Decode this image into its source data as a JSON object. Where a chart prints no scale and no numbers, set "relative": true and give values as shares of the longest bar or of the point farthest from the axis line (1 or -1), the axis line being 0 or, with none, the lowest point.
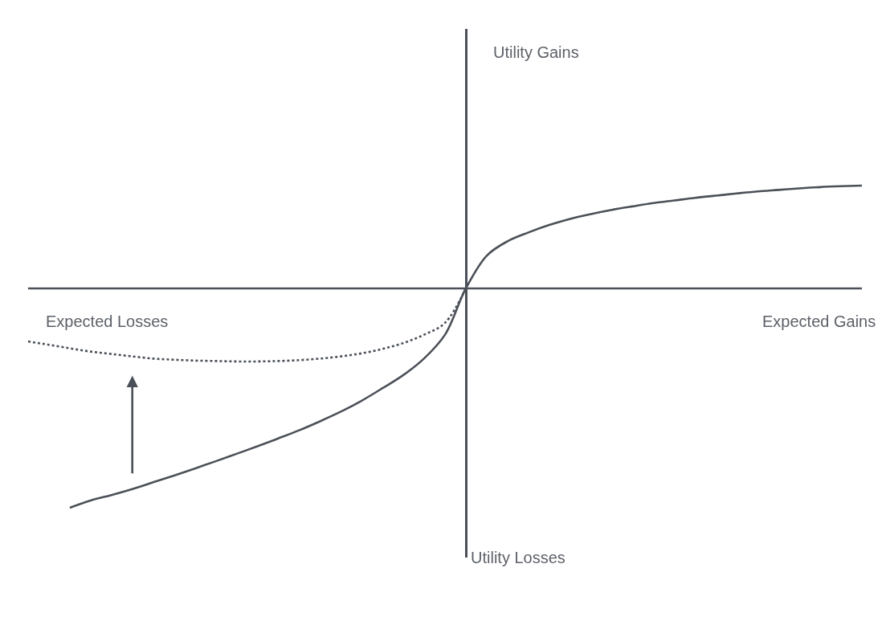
{
  "chart_data": {
    "type": "line",
    "relative": true,
    "categories": [
      null,
      null,
      null,
      null,
      null,
      null,
      null,
      null,
      null,
      null,
      null,
      null,
      null,
      null,
      null,
      null,
      null,
      null,
      null,
      null,
      null,
      null,
      null,
      null,
      null,
      null,
      null,
      null,
      null,
      null,
      null,
      null,
      null,
      null,
      null,
      null,
      null,
      null,
      null,
      null,
      null
    ],
    "series": [
      {
        "color": "#4b5058",
        "line_style": "solid",
        "values": [
          null,
          null,
          -1.0,
          -0.967,
          -0.942,
          -0.915,
          -0.884,
          -0.853,
          -0.821,
          -0.788,
          -0.754,
          -0.72,
          -0.684,
          -0.647,
          -0.606,
          -0.562,
          -0.512,
          -0.455,
          -0.395,
          -0.319,
          -0.211,
          0,
          0.149,
          0.215,
          0.255,
          0.289,
          0.317,
          0.339,
          0.358,
          0.374,
          0.389,
          0.401,
          0.413,
          0.423,
          0.433,
          0.442,
          0.449,
          0.456,
          0.462,
          0.466,
          0.469
        ]
      },
      {
        "color": "#4b5058",
        "line_style": "dotted",
        "values": [
          -0.242,
          -0.257,
          -0.273,
          -0.288,
          -0.299,
          -0.31,
          -0.32,
          -0.325,
          -0.329,
          -0.331,
          -0.333,
          -0.333,
          -0.331,
          -0.327,
          -0.32,
          -0.31,
          -0.296,
          -0.276,
          -0.249,
          -0.211,
          -0.157,
          0,
          null,
          null,
          null,
          null,
          null,
          null,
          null,
          null,
          null,
          null,
          null,
          null,
          null,
          null,
          null,
          null,
          null,
          null,
          null
        ]
      }
    ],
    "annotations": [
      "Utility Gains",
      "Utility Losses",
      "Expected Losses",
      "Expected Gains"
    ]
  }
}
